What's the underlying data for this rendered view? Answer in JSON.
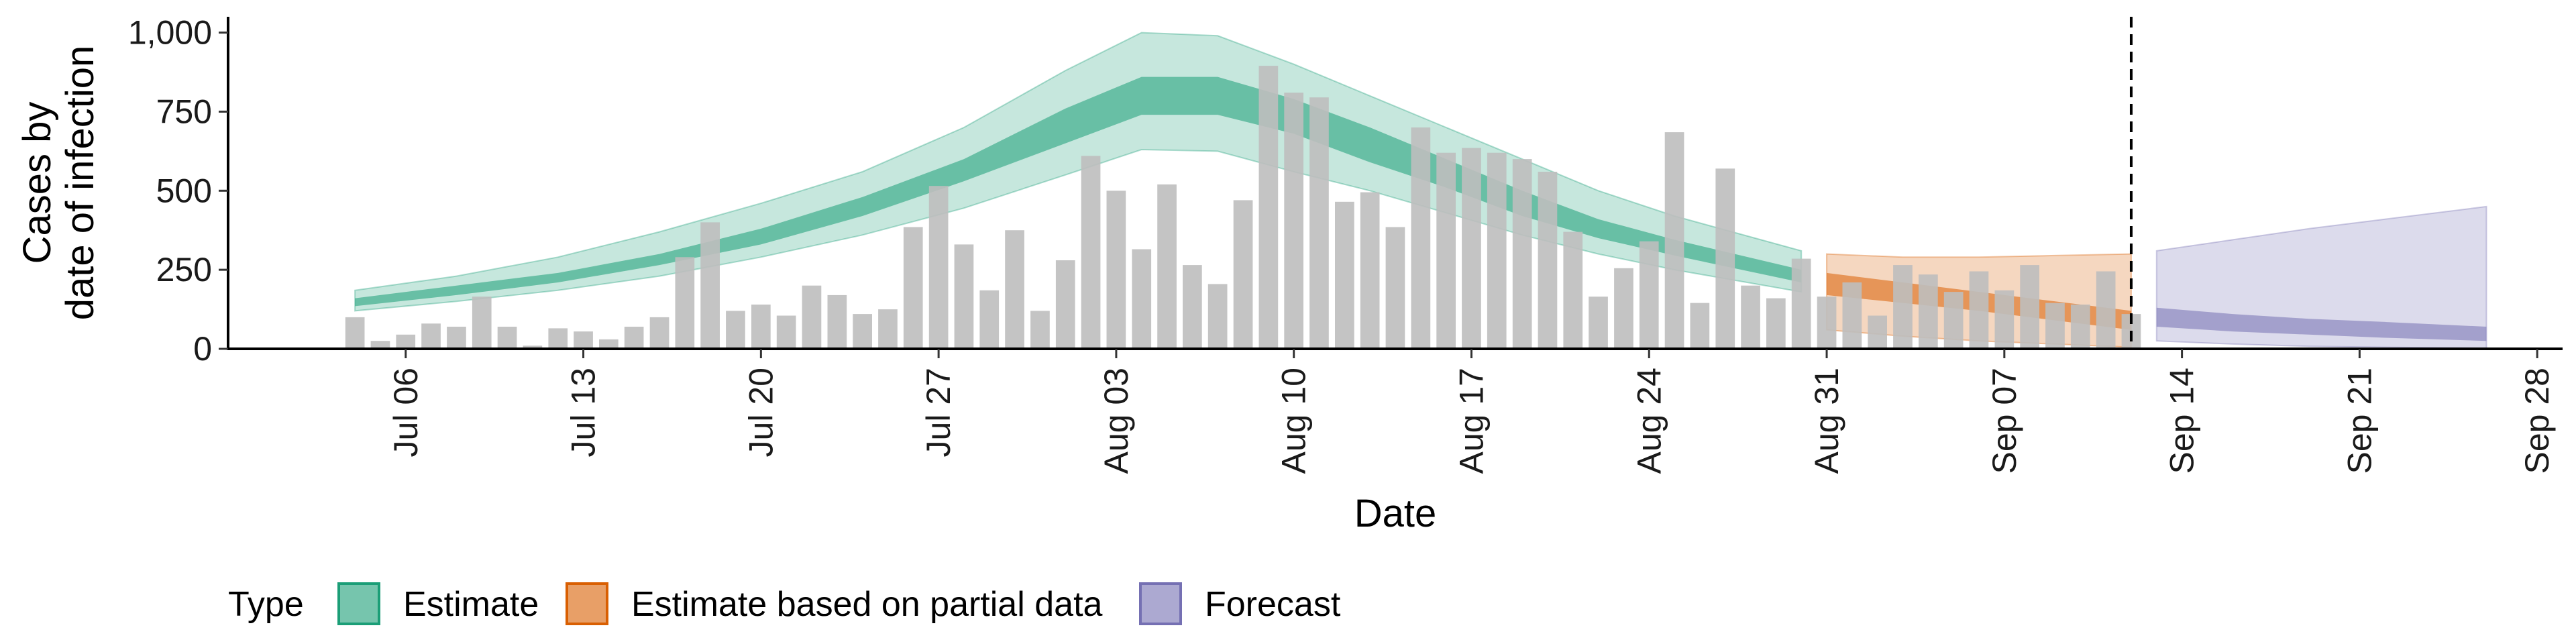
{
  "chart_data": {
    "type": "bar",
    "title": "",
    "xlabel": "Date",
    "ylabel_lines": [
      "Cases by",
      "date of infection"
    ],
    "ylim": [
      0,
      1050
    ],
    "y_ticks": [
      0,
      250,
      500,
      750,
      1000
    ],
    "y_tick_labels": [
      "0",
      "250",
      "500",
      "750",
      "1,000"
    ],
    "x_range": [
      "2020-06-29",
      "2020-09-29"
    ],
    "x_ticks": [
      "2020-07-06",
      "2020-07-13",
      "2020-07-20",
      "2020-07-27",
      "2020-08-03",
      "2020-08-10",
      "2020-08-17",
      "2020-08-24",
      "2020-08-31",
      "2020-09-07",
      "2020-09-14",
      "2020-09-21",
      "2020-09-28"
    ],
    "x_tick_labels": [
      "Jul 06",
      "Jul 13",
      "Jul 20",
      "Jul 27",
      "Aug 03",
      "Aug 10",
      "Aug 17",
      "Aug 24",
      "Aug 31",
      "Sep 07",
      "Sep 14",
      "Sep 21",
      "Sep 28"
    ],
    "bars_start_date": "2020-07-04",
    "observed_cases": [
      100,
      25,
      45,
      80,
      70,
      165,
      70,
      10,
      65,
      55,
      30,
      70,
      100,
      290,
      400,
      120,
      140,
      105,
      200,
      170,
      110,
      125,
      385,
      515,
      330,
      185,
      375,
      120,
      280,
      610,
      500,
      315,
      520,
      265,
      205,
      470,
      895,
      810,
      795,
      465,
      495,
      385,
      700,
      620,
      635,
      620,
      600,
      560,
      370,
      165,
      255,
      340,
      685,
      145,
      570,
      200,
      160,
      285,
      165,
      210,
      105,
      265,
      235,
      180,
      245,
      185,
      265,
      145,
      140,
      245,
      110
    ],
    "forecast_start_date": "2020-09-12",
    "bar_color": "#bebebe",
    "series": [
      {
        "name": "Estimate",
        "color": "#1b9e77",
        "dates": [
          "2020-07-04",
          "2020-07-08",
          "2020-07-12",
          "2020-07-16",
          "2020-07-20",
          "2020-07-24",
          "2020-07-28",
          "2020-08-01",
          "2020-08-04",
          "2020-08-07",
          "2020-08-10",
          "2020-08-13",
          "2020-08-16",
          "2020-08-19",
          "2020-08-22",
          "2020-08-25",
          "2020-08-30"
        ],
        "outer_upper": [
          185,
          230,
          290,
          370,
          460,
          560,
          700,
          880,
          1000,
          990,
          900,
          800,
          700,
          600,
          500,
          420,
          310
        ],
        "inner_upper": [
          160,
          200,
          240,
          300,
          380,
          480,
          600,
          760,
          860,
          860,
          790,
          700,
          600,
          500,
          410,
          345,
          250
        ],
        "inner_lower": [
          135,
          170,
          210,
          265,
          330,
          420,
          530,
          650,
          740,
          740,
          680,
          590,
          510,
          420,
          350,
          295,
          210
        ],
        "outer_lower": [
          120,
          150,
          185,
          230,
          290,
          360,
          445,
          550,
          630,
          625,
          560,
          500,
          430,
          360,
          300,
          250,
          180
        ]
      },
      {
        "name": "Estimate based on partial data",
        "color": "#d95f02",
        "dates": [
          "2020-08-31",
          "2020-09-03",
          "2020-09-06",
          "2020-09-09",
          "2020-09-12"
        ],
        "outer_upper": [
          300,
          290,
          290,
          295,
          300
        ],
        "inner_upper": [
          240,
          210,
          180,
          150,
          120
        ],
        "inner_lower": [
          170,
          145,
          120,
          90,
          60
        ],
        "outer_lower": [
          60,
          40,
          25,
          15,
          5
        ]
      },
      {
        "name": "Forecast",
        "color": "#7570b3",
        "dates": [
          "2020-09-13",
          "2020-09-16",
          "2020-09-19",
          "2020-09-22",
          "2020-09-26"
        ],
        "outer_upper": [
          310,
          345,
          380,
          410,
          450
        ],
        "inner_upper": [
          130,
          110,
          95,
          85,
          70
        ],
        "inner_lower": [
          70,
          55,
          45,
          35,
          25
        ],
        "outer_lower": [
          25,
          15,
          8,
          5,
          2
        ]
      }
    ],
    "legend": {
      "title": "Type",
      "position": "bottom",
      "items": [
        "Estimate",
        "Estimate based on partial data",
        "Forecast"
      ]
    },
    "grid": false
  }
}
